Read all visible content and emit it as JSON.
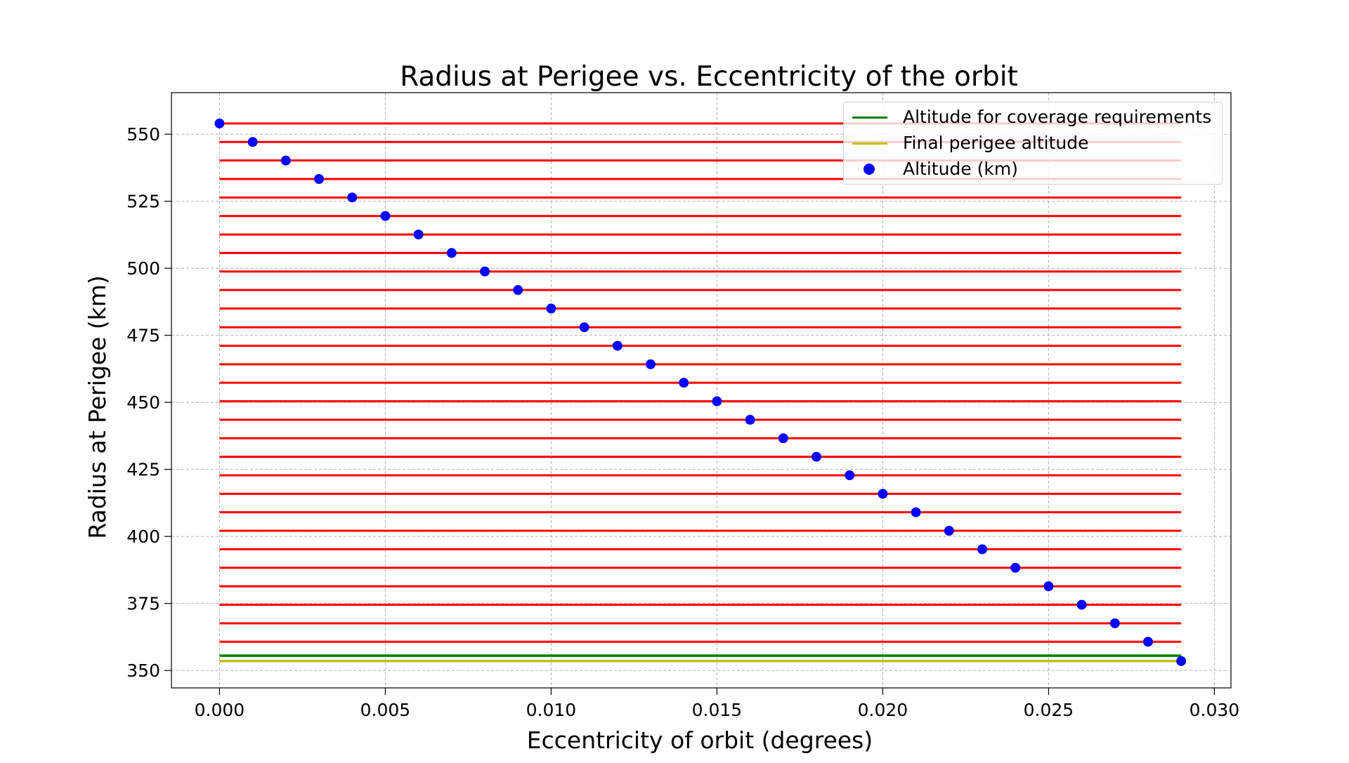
{
  "chart_data": {
    "type": "scatter",
    "title": "Radius at Perigee vs. Eccentricity of the orbit",
    "xlabel": "Eccentricity of orbit (degrees)",
    "ylabel": "Radius at Perigee (km)",
    "xlim": [
      -0.00145,
      0.0305
    ],
    "ylim": [
      343.5,
      565.5
    ],
    "xticks": [
      "0.000",
      "0.005",
      "0.010",
      "0.015",
      "0.020",
      "0.025",
      "0.030"
    ],
    "xtick_values": [
      0,
      0.005,
      0.01,
      0.015,
      0.02,
      0.025,
      0.03
    ],
    "yticks": [
      "350",
      "375",
      "400",
      "425",
      "450",
      "475",
      "500",
      "525",
      "550"
    ],
    "ytick_values": [
      350,
      375,
      400,
      425,
      450,
      475,
      500,
      525,
      550
    ],
    "grid": true,
    "legend_position": "top-right",
    "series": [
      {
        "name": "Altitude (km)",
        "kind": "scatter",
        "color": "#0000ff",
        "x": [
          0,
          0.001,
          0.002,
          0.003,
          0.004,
          0.005,
          0.006,
          0.007,
          0.008,
          0.009,
          0.01,
          0.011,
          0.012,
          0.013,
          0.014,
          0.015,
          0.016,
          0.017,
          0.018,
          0.019,
          0.02,
          0.021,
          0.022,
          0.023,
          0.024,
          0.025,
          0.026,
          0.027,
          0.028,
          0.029
        ],
        "y": [
          554.0,
          547.1,
          540.2,
          533.3,
          526.4,
          519.5,
          512.6,
          505.7,
          498.8,
          491.9,
          485.0,
          478.0,
          471.1,
          464.2,
          457.3,
          450.4,
          443.5,
          436.6,
          429.7,
          422.8,
          415.9,
          409.0,
          402.1,
          395.2,
          388.3,
          381.4,
          374.5,
          367.6,
          360.7,
          353.5
        ]
      },
      {
        "name": "Altitude for coverage requirements",
        "kind": "hline",
        "color": "#008000",
        "y": 355.5,
        "x_range": [
          0,
          0.029
        ]
      },
      {
        "name": "Final perigee altitude",
        "kind": "hline",
        "color": "#bfbf00",
        "y": 353.5,
        "x_range": [
          0,
          0.029
        ]
      },
      {
        "name": "",
        "kind": "hlines",
        "color": "#ff0000",
        "x_range": [
          0,
          0.029
        ],
        "y": [
          554.0,
          547.1,
          540.2,
          533.3,
          526.4,
          519.5,
          512.6,
          505.7,
          498.8,
          491.9,
          485.0,
          478.0,
          471.1,
          464.2,
          457.3,
          450.4,
          443.5,
          436.6,
          429.7,
          422.8,
          415.9,
          409.0,
          402.1,
          395.2,
          388.3,
          381.4,
          374.5,
          367.6,
          360.7
        ]
      }
    ],
    "legend": [
      {
        "label": "Altitude for coverage requirements",
        "type": "line",
        "color": "#008000"
      },
      {
        "label": "Final perigee altitude",
        "type": "line",
        "color": "#bfbf00"
      },
      {
        "label": "Altitude (km)",
        "type": "dot",
        "color": "#0000ff"
      }
    ]
  }
}
